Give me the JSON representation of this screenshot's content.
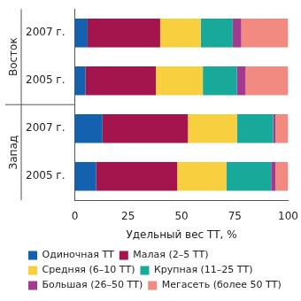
{
  "chart_data": {
    "type": "bar",
    "orientation": "horizontal",
    "stacked": true,
    "categories": [
      "2007 г.",
      "2005 г.",
      "2007 г.",
      "2005 г."
    ],
    "category_groups": [
      "Восток",
      "Восток",
      "Запад",
      "Запад"
    ],
    "x_label": "Удельный вес ТТ, %",
    "xlim": [
      0,
      100
    ],
    "xticks": [
      0,
      25,
      50,
      75,
      100
    ],
    "grid": false,
    "legend": "bottom",
    "series": [
      {
        "name": "Одиночная ТТ",
        "color": "#1461b0",
        "values": [
          6,
          5,
          13,
          10
        ]
      },
      {
        "name": "Малая (2–5 ТТ)",
        "color": "#a3154c",
        "values": [
          34,
          33,
          40,
          38
        ]
      },
      {
        "name": "Средняя (6–10 ТТ)",
        "color": "#f8cf3e",
        "values": [
          19,
          22,
          23,
          23
        ]
      },
      {
        "name": "Крупная (11–25 ТТ)",
        "color": "#19a99a",
        "values": [
          15,
          16,
          17,
          21
        ]
      },
      {
        "name": "Большая (26–50 ТТ)",
        "color": "#a23b8f",
        "values": [
          4,
          4,
          1,
          2
        ]
      },
      {
        "name": "Мегасеть (более 50 ТТ)",
        "color": "#f28a82",
        "values": [
          22,
          20,
          6,
          6
        ]
      }
    ]
  }
}
